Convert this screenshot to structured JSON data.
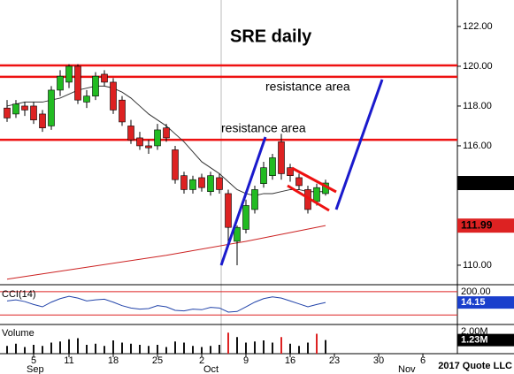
{
  "chart_data": {
    "type": "candlestick",
    "title": "SRE daily",
    "annotations": [
      "resistance area",
      "resistance area"
    ],
    "credit": "2017 Quote LLC",
    "ylim": [
      109.02,
      123.33
    ],
    "yticks": [
      {
        "value": 122,
        "label": "122.00"
      },
      {
        "value": 120,
        "label": "120.00"
      },
      {
        "value": 118,
        "label": "118.00"
      },
      {
        "value": 116,
        "label": "116.00"
      },
      {
        "value": 110,
        "label": "110.00"
      }
    ],
    "xlim": [
      -0.8,
      50.9
    ],
    "xticks": [
      {
        "value": 3,
        "label": "5"
      },
      {
        "value": 7,
        "label": "11"
      },
      {
        "value": 12,
        "label": "18"
      },
      {
        "value": 17,
        "label": "25"
      },
      {
        "value": 22,
        "label": "2"
      },
      {
        "value": 27,
        "label": "9"
      },
      {
        "value": 32,
        "label": "16"
      },
      {
        "value": 37,
        "label": "23"
      },
      {
        "value": 42,
        "label": "30"
      },
      {
        "value": 47,
        "label": "6"
      }
    ],
    "month_labels": [
      {
        "value": 3,
        "label": "Sep"
      },
      {
        "value": 23,
        "label": "Oct"
      },
      {
        "value": 45,
        "label": "Nov"
      }
    ],
    "up_color": "#22bb22",
    "down_color": "#dd2222",
    "open": [
      117.9,
      117.6,
      118.0,
      118.0,
      117.6,
      117.0,
      118.8,
      119.2,
      120.0,
      118.2,
      118.5,
      119.6,
      119.2,
      118.3,
      117.0,
      116.4,
      116.0,
      116.0,
      116.9,
      115.8,
      114.5,
      113.8,
      114.4,
      113.7,
      114.4,
      113.6,
      111.2,
      111.8,
      112.8,
      114.1,
      114.5,
      116.2,
      114.9,
      114.4,
      113.8,
      113.2,
      113.6
    ],
    "high": [
      118.3,
      118.3,
      118.2,
      118.2,
      117.8,
      119.0,
      119.8,
      120.1,
      120.1,
      118.8,
      119.7,
      119.8,
      119.4,
      118.5,
      117.3,
      116.7,
      116.3,
      117.1,
      117.1,
      116.0,
      114.7,
      114.5,
      114.6,
      114.7,
      114.6,
      113.8,
      112.0,
      113.3,
      114.0,
      115.2,
      115.6,
      116.6,
      115.1,
      114.6,
      114.0,
      114.1,
      114.3
    ],
    "low": [
      117.2,
      117.4,
      117.5,
      117.1,
      116.7,
      116.8,
      118.5,
      118.9,
      118.1,
      117.9,
      118.3,
      119.0,
      117.6,
      117.0,
      116.1,
      115.8,
      115.6,
      115.8,
      116.2,
      114.1,
      113.6,
      113.6,
      113.7,
      113.5,
      113.6,
      111.0,
      110.0,
      111.6,
      112.6,
      113.9,
      114.3,
      114.3,
      114.2,
      113.8,
      112.6,
      113.0,
      113.5
    ],
    "close": [
      117.4,
      118.1,
      117.8,
      117.3,
      116.9,
      118.8,
      119.5,
      120.0,
      118.3,
      118.5,
      119.5,
      119.2,
      117.8,
      117.2,
      116.3,
      116.0,
      115.9,
      116.8,
      116.4,
      114.3,
      113.8,
      114.3,
      113.9,
      114.5,
      113.8,
      111.9,
      111.9,
      113.0,
      113.8,
      114.9,
      115.4,
      114.6,
      114.5,
      114.0,
      112.8,
      113.9,
      114.13
    ],
    "hlines": {
      "color": "#ee1111",
      "values": [
        120.04,
        119.47,
        116.3
      ]
    },
    "moving_averages": [
      {
        "color": "#333333",
        "values": [
          118.0,
          118.1,
          118.2,
          118.2,
          118.2,
          118.3,
          118.4,
          118.6,
          118.8,
          118.9,
          119.0,
          119.0,
          118.9,
          118.7,
          118.4,
          118.0,
          117.6,
          117.3,
          117.0,
          116.6,
          116.2,
          115.7,
          115.2,
          114.9,
          114.6,
          114.2,
          113.8,
          113.6,
          113.5,
          113.6,
          113.6,
          113.7,
          113.8,
          113.8,
          113.7,
          113.7,
          113.7
        ]
      },
      {
        "color": "#cc2222",
        "x": [
          0,
          9,
          18,
          27,
          36
        ],
        "values": [
          109.3,
          109.9,
          110.5,
          111.2,
          111.99
        ]
      }
    ],
    "last_price": 114.13,
    "last_ma": 111.99,
    "cci": {
      "label": "CCI(14)",
      "color": "#2244aa",
      "ylim": [
        -348,
        304
      ],
      "yticks": [
        {
          "value": 200,
          "label": "200.00"
        }
      ],
      "ref_lines": [
        200,
        -200
      ],
      "values": [
        40,
        60,
        30,
        -20,
        -60,
        20,
        80,
        120,
        90,
        40,
        60,
        70,
        20,
        -40,
        -80,
        -100,
        -90,
        -40,
        -60,
        -120,
        -130,
        -100,
        -110,
        -70,
        -80,
        -150,
        -140,
        -60,
        20,
        80,
        110,
        90,
        40,
        -10,
        -60,
        -20,
        14.15
      ],
      "last": {
        "value": 14.15,
        "label": "14.15"
      }
    },
    "volume": {
      "label": "Volume",
      "color": "#111111",
      "highlight_color": "#dd2222",
      "ylim": [
        0,
        2.56
      ],
      "yticks": [
        {
          "value": 2,
          "label": "2.00M"
        }
      ],
      "highlight": [
        25,
        31,
        35
      ],
      "values": [
        0.7,
        0.9,
        0.6,
        0.8,
        0.7,
        1.0,
        1.1,
        1.3,
        1.4,
        0.8,
        0.9,
        0.7,
        1.2,
        1.0,
        0.9,
        0.8,
        0.7,
        0.8,
        0.6,
        1.1,
        1.0,
        0.7,
        0.6,
        0.7,
        0.8,
        1.9,
        1.5,
        1.0,
        1.1,
        1.2,
        1.0,
        1.5,
        0.9,
        0.7,
        1.0,
        1.8,
        1.23
      ],
      "last": {
        "value": 1.23,
        "label": "1.23M"
      }
    }
  }
}
